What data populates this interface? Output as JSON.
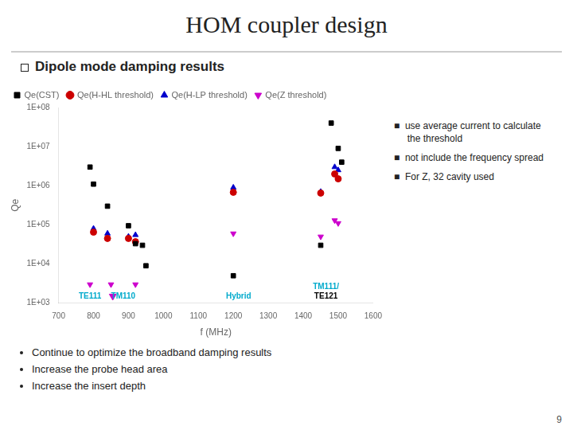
{
  "chart_data": {
    "type": "scatter",
    "title": "HOM coupler design",
    "subtitle": "Dipole mode damping results",
    "x_label": "f (MHz)",
    "y_label": "Qe",
    "log": "y",
    "grid": false,
    "legend": "upper left",
    "xlim": [
      700,
      1600
    ],
    "xticks": [
      700,
      800,
      900,
      1000,
      1100,
      1200,
      1300,
      1400,
      1500,
      1600
    ],
    "ylim": [
      1000,
      100000000
    ],
    "yticks": [
      {
        "value": 1000,
        "label": "1E+03"
      },
      {
        "value": 10000,
        "label": "1E+04"
      },
      {
        "value": 100000,
        "label": "1E+05"
      },
      {
        "value": 1000000,
        "label": "1E+06"
      },
      {
        "value": 10000000,
        "label": "1E+07"
      },
      {
        "value": 100000000,
        "label": "1E+08"
      }
    ],
    "series": [
      {
        "name": "Qe(CST)",
        "color": "#000000",
        "marker": "square",
        "x": [
          790,
          800,
          840,
          900,
          920,
          940,
          950,
          1200,
          1450,
          1480,
          1500,
          1510
        ],
        "values": [
          3000000,
          1100000,
          300000,
          95000,
          33000,
          30000,
          9000,
          5000,
          30000,
          40000000,
          9000000,
          4000000
        ]
      },
      {
        "name": "Qe(H-HL threshold)",
        "color": "#cc0000",
        "marker": "circle",
        "x": [
          800,
          840,
          900,
          920,
          1200,
          1450,
          1490,
          1500
        ],
        "values": [
          65000,
          45000,
          45000,
          37000,
          680000,
          650000,
          2000000,
          1500000
        ]
      },
      {
        "name": "Qe(H-LP threshold)",
        "color": "#0000cc",
        "marker": "triangle_up",
        "x": [
          800,
          840,
          900,
          920,
          1200,
          1450,
          1490,
          1500
        ],
        "values": [
          80000,
          60000,
          50000,
          55000,
          900000,
          700000,
          3000000,
          2500000
        ]
      },
      {
        "name": "Qe(Z threshold)",
        "color": "#cc00cc",
        "marker": "triangle_down",
        "x": [
          790,
          850,
          920,
          1200,
          1450,
          1490,
          1500
        ],
        "values": [
          3000,
          3000,
          3000,
          60000,
          50000,
          130000,
          110000
        ]
      }
    ],
    "markers": [
      {
        "x": 855,
        "y": 1500,
        "color": "#cc00cc",
        "marker": "triangle_down"
      }
    ],
    "annotations": [
      {
        "text": "TE111",
        "x": 790,
        "color": "#00aacc"
      },
      {
        "text": "TM110",
        "x": 885,
        "color": "#00aacc"
      },
      {
        "text": "Hybrid",
        "x": 1215,
        "color": "#00aacc"
      },
      {
        "text": "TM111/",
        "x": 1465,
        "color": "#00aacc"
      },
      {
        "text": "TE121",
        "x": 1465,
        "color": "#000000"
      }
    ],
    "notes": [
      "■  use average current to calculate\n     the threshold",
      "■  not include the frequency spread",
      "■  For Z, 32 cavity used"
    ],
    "bullets": [
      "Continue to optimize the broadband damping results",
      "Increase the probe head area",
      "Increase the insert depth"
    ],
    "page_number": "9"
  }
}
